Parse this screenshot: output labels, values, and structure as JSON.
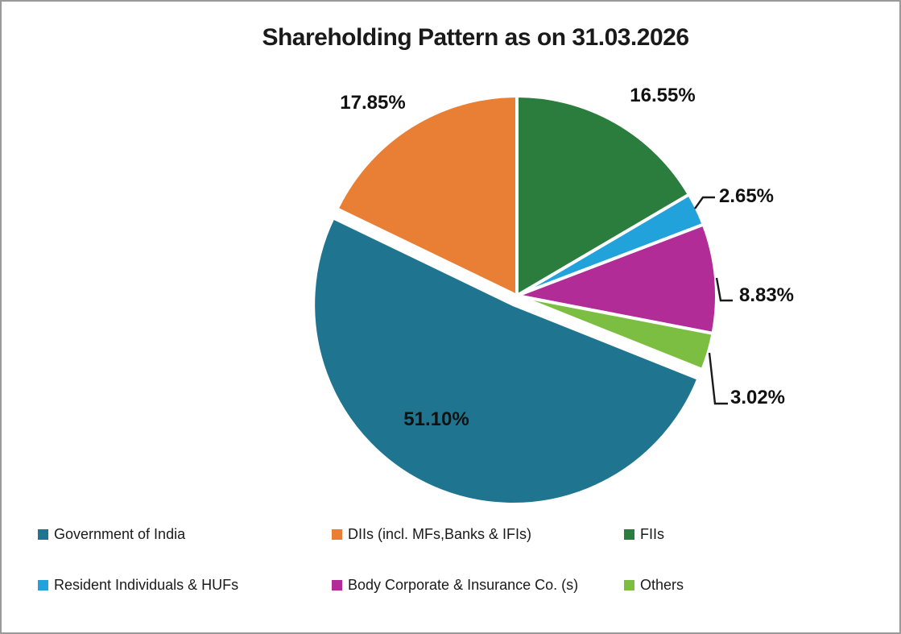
{
  "frame": {
    "background": "#ffffff",
    "border_color": "#9a9a9a"
  },
  "chart_data": {
    "type": "pie",
    "title": "Shareholding Pattern as on 31.03.2026",
    "start_angle_deg": 111.78,
    "direction": "clockwise",
    "legend_position": "bottom",
    "label_format": "percent",
    "slices": [
      {
        "label": "Government of India",
        "value": 51.1,
        "pct_label": "51.10%",
        "color": "#1F758F",
        "exploded": true,
        "label_placement": "inside"
      },
      {
        "label": "DIIs (incl. MFs,Banks & IFIs)",
        "value": 17.85,
        "pct_label": "17.85%",
        "color": "#E97E35",
        "exploded": false,
        "label_placement": "outside"
      },
      {
        "label": "FIIs",
        "value": 16.55,
        "pct_label": "16.55%",
        "color": "#2B7D3E",
        "exploded": false,
        "label_placement": "outside"
      },
      {
        "label": "Resident Individuals & HUFs",
        "value": 2.65,
        "pct_label": "2.65%",
        "color": "#22A2DB",
        "exploded": false,
        "label_placement": "outside-leader"
      },
      {
        "label": "Body Corporate & Insurance Co. (s)",
        "value": 8.83,
        "pct_label": "8.83%",
        "color": "#B12C97",
        "exploded": false,
        "label_placement": "outside-leader"
      },
      {
        "label": "Others",
        "value": 3.02,
        "pct_label": "3.02%",
        "color": "#7BBE41",
        "exploded": false,
        "label_placement": "outside-leader"
      }
    ]
  }
}
